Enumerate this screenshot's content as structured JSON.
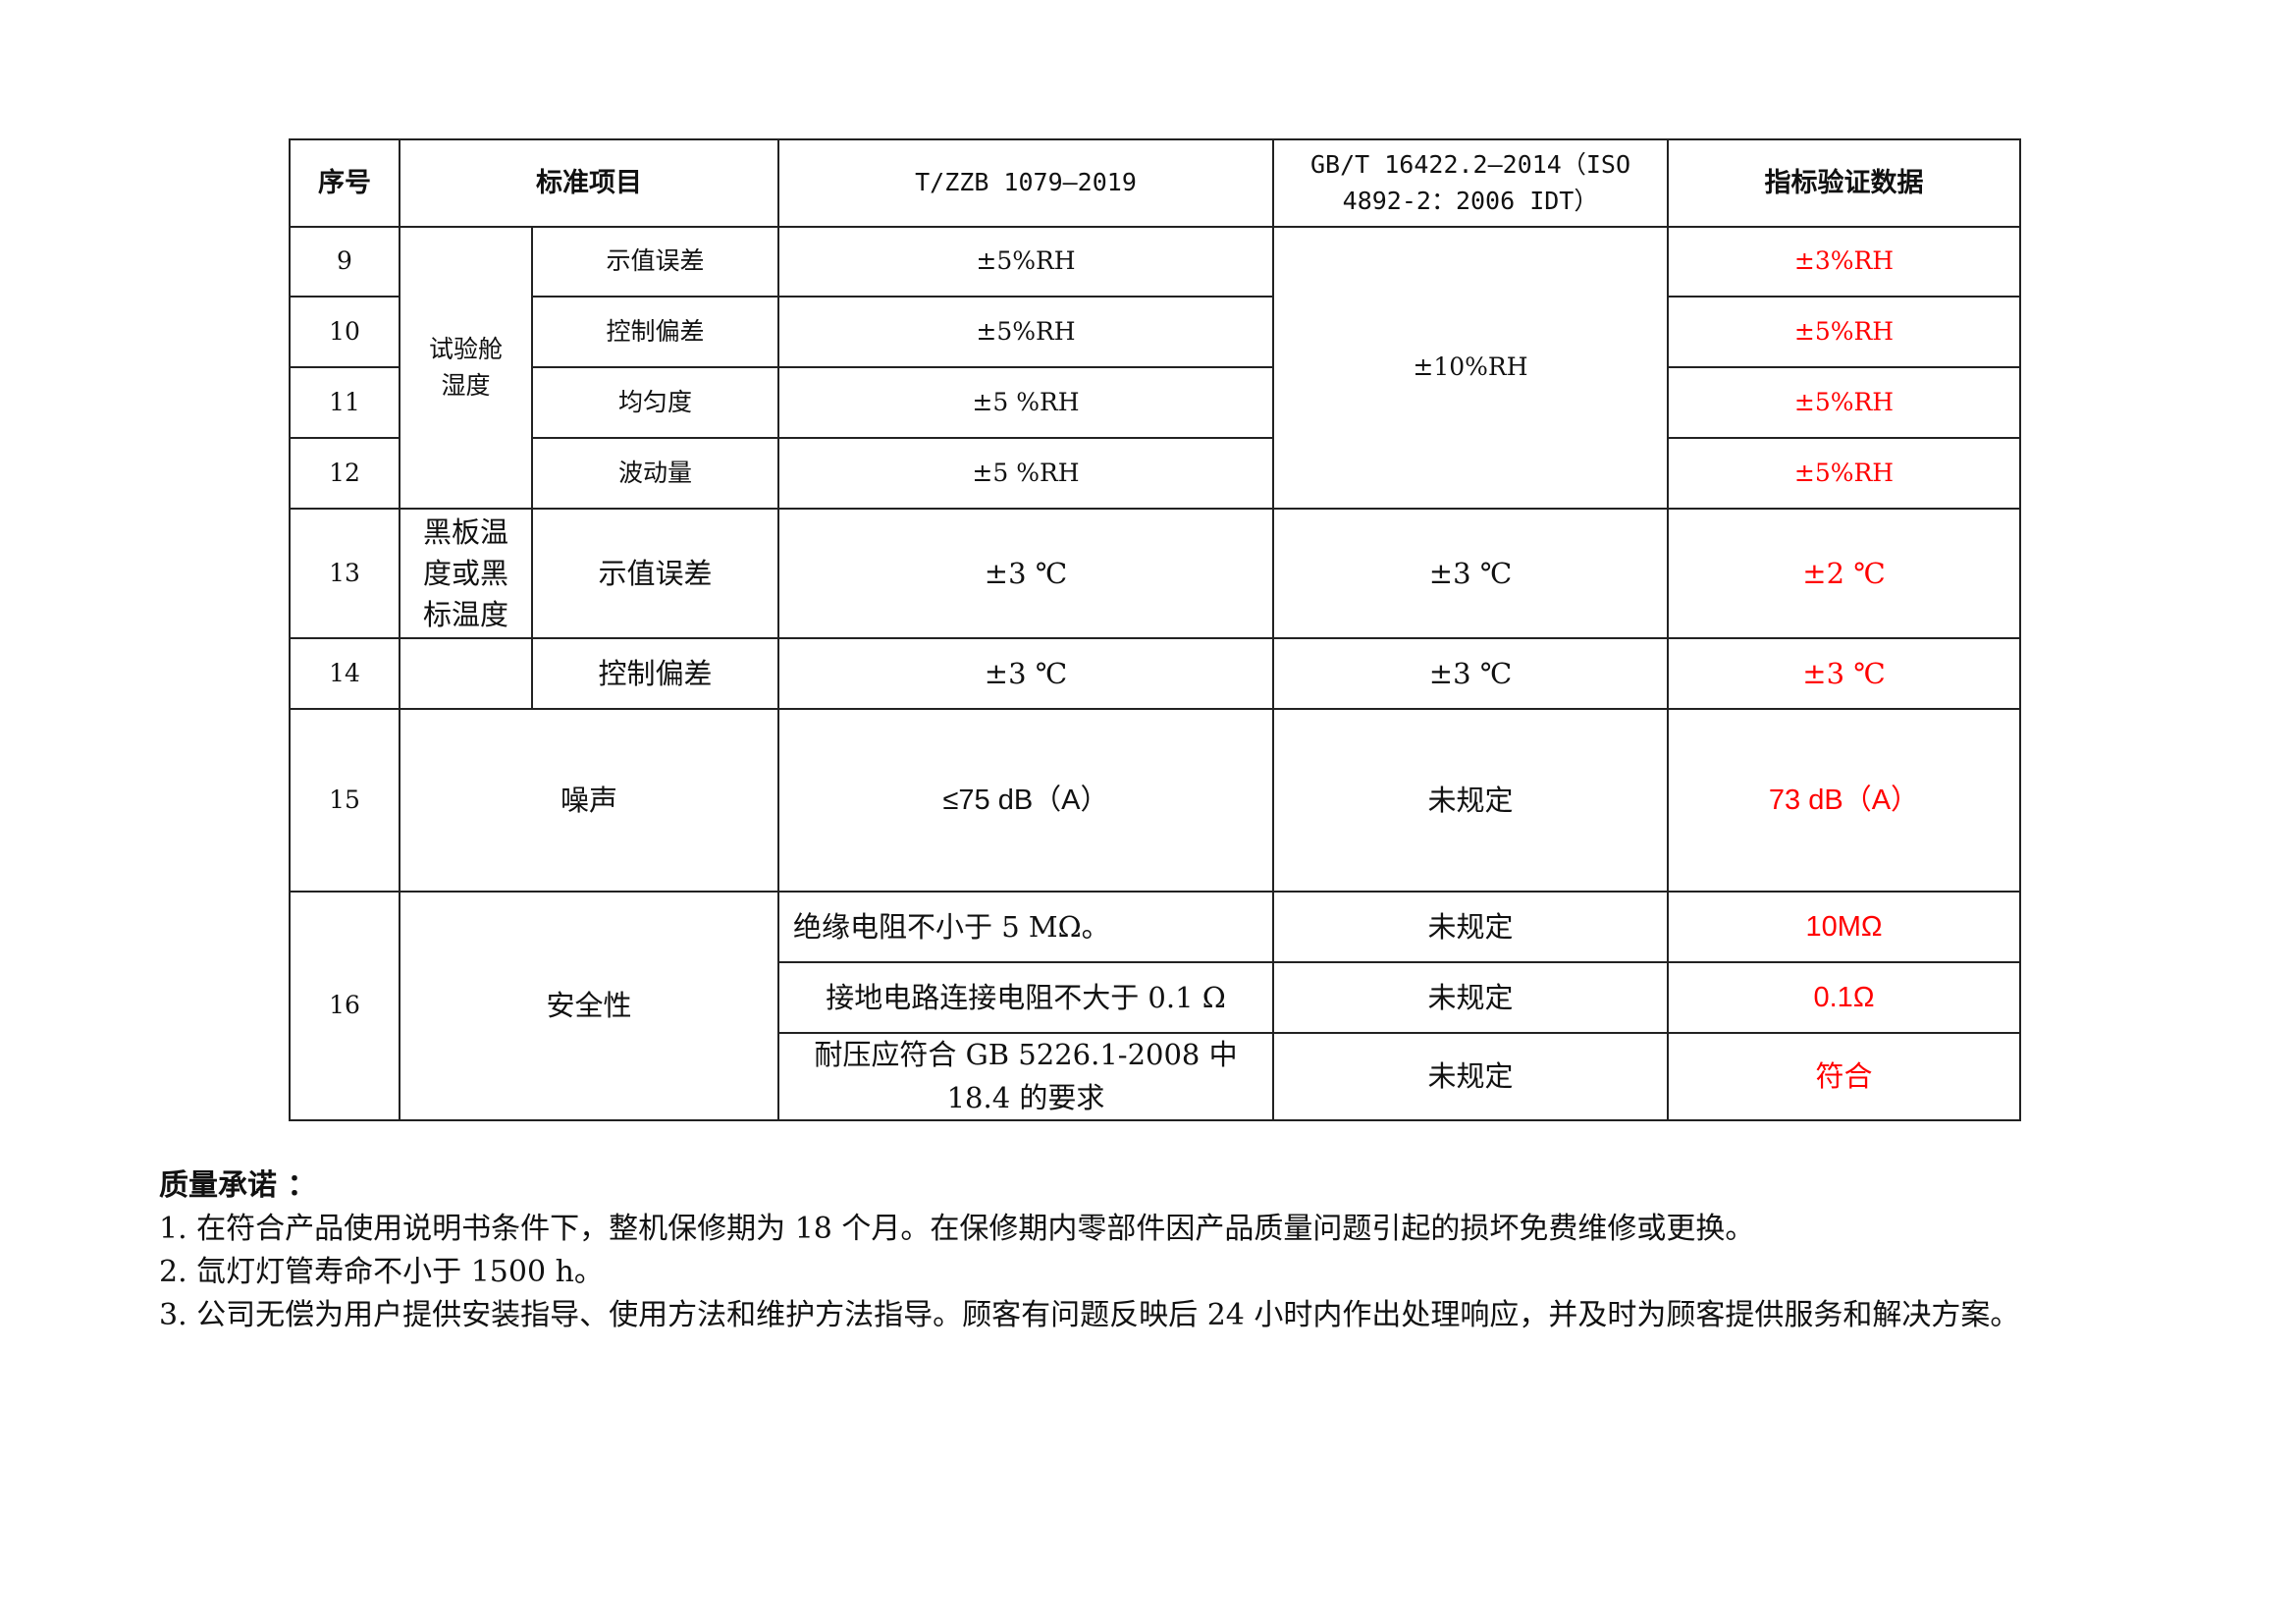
{
  "table": {
    "headers": [
      "序号",
      "标准项目",
      "T/ZZB 1079—2019",
      "GB/T 16422.2—2014（ISO 4892-2：2006 IDT）",
      "指标验证数据"
    ],
    "humidity_group": "试验舱湿度",
    "humidity_shared_gb": "±10%RH",
    "blackpanel_group": "黑板温度或黑标温度",
    "safety_group": "安全性",
    "rows": [
      {
        "no": "9",
        "item": "示值误差",
        "zzb": "±5%RH",
        "result": "±3%RH"
      },
      {
        "no": "10",
        "item": "控制偏差",
        "zzb": "±5%RH",
        "result": "±5%RH"
      },
      {
        "no": "11",
        "item": "均匀度",
        "zzb": "±5 %RH",
        "result": "±5%RH"
      },
      {
        "no": "12",
        "item": "波动量",
        "zzb": "±5 %RH",
        "result": "±5%RH"
      },
      {
        "no": "13",
        "item": "示值误差",
        "zzb": "±3 ℃",
        "gb": "±3 ℃",
        "result": "±2 ℃"
      },
      {
        "no": "14",
        "item": "控制偏差",
        "zzb": "±3 ℃",
        "gb": "±3 ℃",
        "result": "±3 ℃"
      },
      {
        "no": "15",
        "item": "噪声",
        "zzb": "≤75 dB（A）",
        "gb": "未规定",
        "result": "73 dB（A）"
      },
      {
        "no": "16"
      }
    ],
    "safety_rows": [
      {
        "zzb": "绝缘电阻不小于 5 MΩ。",
        "gb": "未规定",
        "result": "10MΩ"
      },
      {
        "zzb": "接地电路连接电阻不大于 0.1 Ω",
        "gb": "未规定",
        "result": "0.1Ω"
      },
      {
        "zzb": "耐压应符合 GB 5226.1-2008 中 18.4 的要求",
        "gb": "未规定",
        "result": "符合"
      }
    ]
  },
  "quality": {
    "title": "质量承诺 ：",
    "items": [
      "1. 在符合产品使用说明书条件下，整机保修期为 18 个月。在保修期内零部件因产品质量问题引起的损坏免费维修或更换。",
      "2. 氙灯灯管寿命不小于 1500 h。",
      "3. 公司无偿为用户提供安装指导、使用方法和维护方法指导。顾客有问题反映后 24 小时内作出处理响应，并及时为顾客提供服务和解决方案。"
    ]
  },
  "colors": {
    "result_text": "#ff0000"
  }
}
